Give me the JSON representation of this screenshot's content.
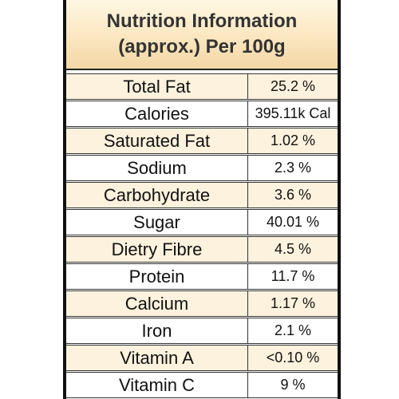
{
  "header": {
    "line1": "Nutrition Information",
    "line2": "(approx.) Per 100g"
  },
  "colors": {
    "border": "#111111",
    "header_gradient_top": "#fff7e3",
    "header_gradient_bottom": "#f3d7a6",
    "row_cream": "#fdf2dd",
    "row_white": "#ffffff",
    "text": "#111111"
  },
  "rows": [
    {
      "label": "Total Fat",
      "value": "25.2 %"
    },
    {
      "label": "Calories",
      "value": "395.11k Cal"
    },
    {
      "label": "Saturated Fat",
      "value": "1.02 %"
    },
    {
      "label": "Sodium",
      "value": "2.3 %"
    },
    {
      "label": "Carbohydrate",
      "value": "3.6 %"
    },
    {
      "label": "Sugar",
      "value": "40.01 %"
    },
    {
      "label": "Dietry Fibre",
      "value": "4.5 %"
    },
    {
      "label": "Protein",
      "value": "11.7 %"
    },
    {
      "label": "Calcium",
      "value": "1.17 %"
    },
    {
      "label": "Iron",
      "value": "2.1 %"
    },
    {
      "label": "Vitamin A",
      "value": "<0.10 %"
    },
    {
      "label": "Vitamin C",
      "value": "9 %"
    }
  ]
}
